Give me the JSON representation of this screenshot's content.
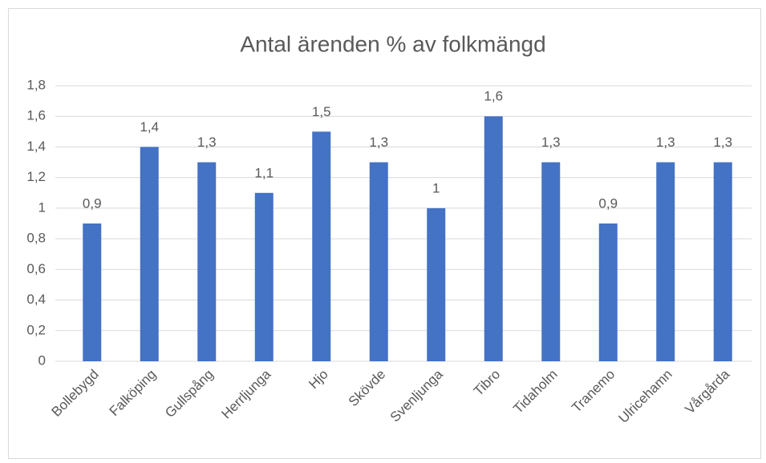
{
  "chart_data": {
    "type": "bar",
    "title": "Antal ärenden % av folkmängd",
    "categories": [
      "Bollebygd",
      "Falköping",
      "Gullspång",
      "Herrljunga",
      "Hjo",
      "Skövde",
      "Svenljunga",
      "Tibro",
      "Tidaholm",
      "Tranemo",
      "Ulricehamn",
      "Vårgårda"
    ],
    "values": [
      0.9,
      1.4,
      1.3,
      1.1,
      1.5,
      1.3,
      1,
      1.6,
      1.3,
      0.9,
      1.3,
      1.3
    ],
    "value_labels": [
      "0,9",
      "1,4",
      "1,3",
      "1,1",
      "1,5",
      "1,3",
      "1",
      "1,6",
      "1,3",
      "0,9",
      "1,3",
      "1,3"
    ],
    "color": "#4472c4",
    "ylim": [
      0,
      1.8
    ],
    "yticks": [
      0,
      {
        "value": 0.2,
        "label": "0,2"
      },
      {
        "value": 0.4,
        "label": "0,4"
      },
      {
        "value": 0.6,
        "label": "0,6"
      },
      {
        "value": 0.8,
        "label": "0,8"
      },
      1,
      {
        "value": 1.2,
        "label": "1,2"
      },
      {
        "value": 1.4,
        "label": "1,4"
      },
      {
        "value": 1.6,
        "label": "1,6"
      },
      {
        "value": 1.8,
        "label": "1,8"
      }
    ],
    "grid": true
  }
}
